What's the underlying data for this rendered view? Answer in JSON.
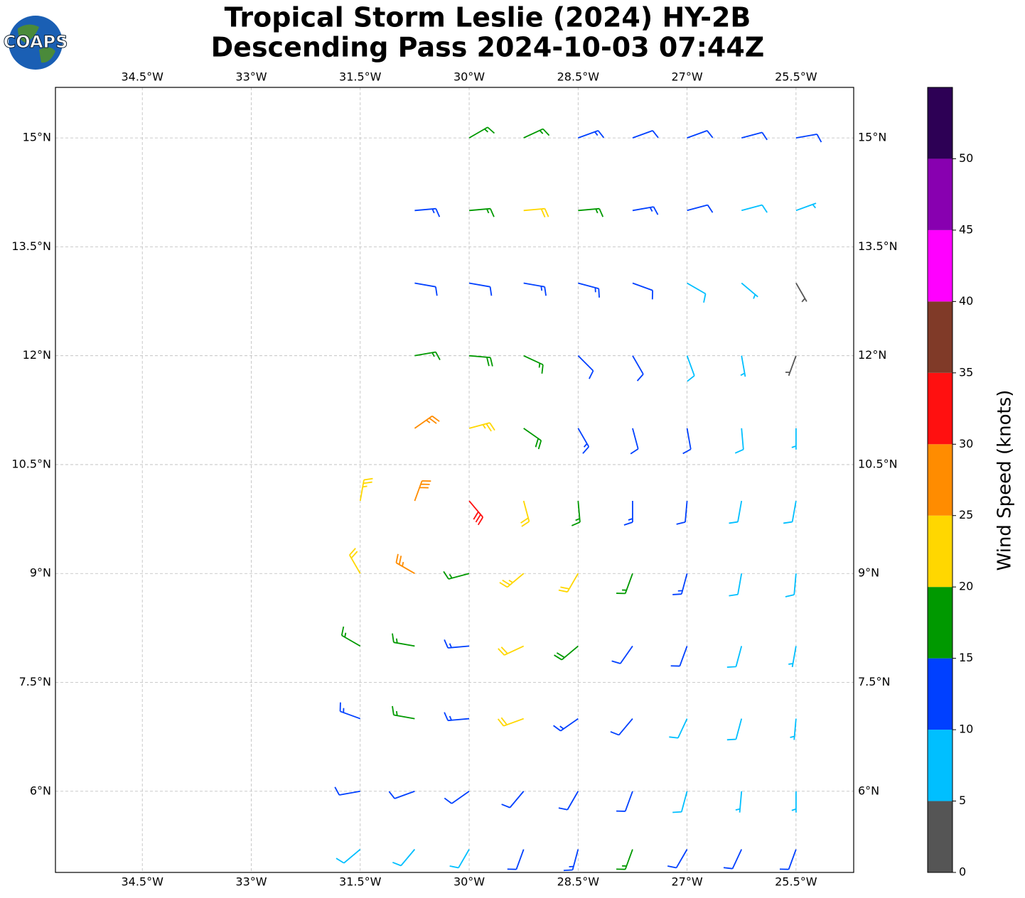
{
  "chart_data": {
    "type": "barbs",
    "title": [
      "Tropical Storm Leslie (2024) HY-2B",
      "Descending Pass 2024-10-03 07:44Z"
    ],
    "logo": "COAPS",
    "xlim": [
      -35.696,
      -24.706
    ],
    "ylim": [
      4.882,
      15.696
    ],
    "xticks": [
      {
        "value": -34.5,
        "label": "34.5°W"
      },
      {
        "value": -33,
        "label": "33°W"
      },
      {
        "value": -31.5,
        "label": "31.5°W"
      },
      {
        "value": -30,
        "label": "30°W"
      },
      {
        "value": -28.5,
        "label": "28.5°W"
      },
      {
        "value": -27,
        "label": "27°W"
      },
      {
        "value": -25.5,
        "label": "25.5°W"
      }
    ],
    "yticks": [
      {
        "value": 6,
        "label": "6°N"
      },
      {
        "value": 7.5,
        "label": "7.5°N"
      },
      {
        "value": 9,
        "label": "9°N"
      },
      {
        "value": 10.5,
        "label": "10.5°N"
      },
      {
        "value": 12,
        "label": "12°N"
      },
      {
        "value": 13.5,
        "label": "13.5°N"
      },
      {
        "value": 15,
        "label": "15°N"
      }
    ],
    "grid": true,
    "barbs": {
      "lon": [
        -30,
        -29.25,
        -28.5,
        -27.75,
        -27,
        -26.25,
        -25.5,
        -30.75,
        -30,
        -29.25,
        -28.5,
        -27.75,
        -27,
        -26.25,
        -25.5,
        -30.75,
        -30,
        -29.25,
        -28.5,
        -27.75,
        -27,
        -26.25,
        -25.5,
        -30.75,
        -30,
        -29.25,
        -28.5,
        -27.75,
        -27,
        -26.25,
        -25.5,
        -30.75,
        -30,
        -29.25,
        -28.5,
        -27.75,
        -27,
        -26.25,
        -25.5,
        -31.5,
        -30.75,
        -30,
        -29.25,
        -28.5,
        -27.75,
        -27,
        -26.25,
        -25.5,
        -31.5,
        -30.75,
        -30,
        -29.25,
        -28.5,
        -27.75,
        -27,
        -26.25,
        -25.5,
        -31.5,
        -30.75,
        -30,
        -29.25,
        -28.5,
        -27.75,
        -27,
        -26.25,
        -25.5,
        -31.5,
        -30.75,
        -30,
        -29.25,
        -28.5,
        -27.75,
        -27,
        -26.25,
        -25.5,
        -31.5,
        -30.75,
        -30,
        -29.25,
        -28.5,
        -27.75,
        -27,
        -26.25,
        -25.5,
        -31.5,
        -30.75,
        -30,
        -29.25,
        -28.5,
        -27.75,
        -27,
        -26.25,
        -25.5
      ],
      "lat": [
        15,
        15,
        15,
        15,
        15,
        15,
        15,
        14,
        14,
        14,
        14,
        14,
        14,
        14,
        14,
        13,
        13,
        13,
        13,
        13,
        13,
        13,
        13,
        12,
        12,
        12,
        12,
        12,
        12,
        12,
        12,
        11,
        11,
        11,
        11,
        11,
        11,
        11,
        11,
        10,
        10,
        10,
        10,
        10,
        10,
        10,
        10,
        10,
        9,
        9,
        9,
        9,
        9,
        9,
        9,
        9,
        9,
        8,
        8,
        8,
        8,
        8,
        8,
        8,
        8,
        8,
        7,
        7,
        7,
        7,
        7,
        7,
        7,
        7,
        7,
        6,
        6,
        6,
        6,
        6,
        6,
        6,
        6,
        6,
        5.2,
        5.2,
        5.2,
        5.2,
        5.2,
        5.2,
        5.2,
        5.2,
        5.2
      ],
      "speed": [
        17,
        16,
        13,
        12,
        12,
        10,
        10,
        13,
        17,
        21,
        17,
        14,
        12,
        9,
        6,
        12,
        12,
        13,
        13,
        12,
        9,
        7,
        3,
        17,
        18,
        15,
        12,
        11,
        9,
        7,
        4,
        26,
        23,
        19,
        14,
        12,
        11,
        9,
        6,
        24,
        28,
        32,
        22,
        15,
        13,
        12,
        9,
        8,
        22,
        26,
        17,
        24,
        21,
        16,
        13,
        9,
        8,
        17,
        15,
        13,
        22,
        18,
        12,
        10,
        8,
        7,
        13,
        16,
        13,
        22,
        14,
        12,
        9,
        8,
        7,
        12,
        11,
        12,
        10,
        11,
        10,
        8,
        7,
        6,
        8,
        8,
        9,
        10,
        13,
        16,
        12,
        11,
        10
      ],
      "direction": [
        60,
        65,
        70,
        70,
        70,
        75,
        80,
        85,
        85,
        85,
        85,
        80,
        75,
        75,
        70,
        100,
        100,
        100,
        105,
        110,
        120,
        130,
        150,
        80,
        95,
        115,
        135,
        150,
        160,
        170,
        200,
        55,
        75,
        125,
        150,
        165,
        170,
        175,
        180,
        10,
        20,
        140,
        165,
        175,
        180,
        185,
        190,
        190,
        330,
        300,
        255,
        230,
        210,
        200,
        195,
        190,
        185,
        300,
        280,
        265,
        245,
        230,
        215,
        200,
        195,
        190,
        290,
        280,
        265,
        250,
        235,
        220,
        205,
        195,
        185,
        260,
        250,
        235,
        220,
        210,
        200,
        195,
        185,
        180,
        230,
        220,
        210,
        200,
        195,
        200,
        210,
        205,
        200
      ]
    },
    "colorbar": {
      "label": "Wind Speed (knots)",
      "levels": [
        0,
        5,
        10,
        15,
        20,
        25,
        30,
        35,
        40,
        45,
        50,
        55
      ],
      "colors": [
        "#555555",
        "#00bfff",
        "#0040ff",
        "#009900",
        "#ffd700",
        "#ff8c00",
        "#ff1010",
        "#803a28",
        "#ff00ff",
        "#8800b0",
        "#2d0055"
      ],
      "ticks": [
        0,
        5,
        10,
        15,
        20,
        25,
        30,
        35,
        40,
        45,
        50
      ]
    }
  }
}
